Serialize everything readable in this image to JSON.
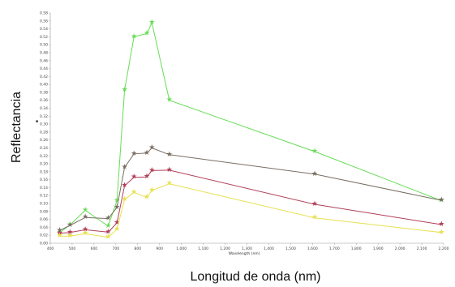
{
  "chart_data": {
    "type": "line",
    "x_title": "Longitud de onda (nm)",
    "y_title": "Reflectancia",
    "inner_x_title": "Wavelength (nm)",
    "xlim": [
      400,
      2200
    ],
    "ylim": [
      0,
      0.58
    ],
    "x_ticks": [
      "400",
      "500",
      "600",
      "700",
      "800",
      "900",
      "1,000",
      "1,100",
      "1,200",
      "1,300",
      "1,400",
      "1,500",
      "1,600",
      "1,700",
      "1,800",
      "1,900",
      "2,000",
      "2,100",
      "2,200"
    ],
    "y_ticks": [
      "0.00",
      "0.02",
      "0.04",
      "0.06",
      "0.08",
      "0.10",
      "0.12",
      "0.14",
      "0.16",
      "0.18",
      "0.20",
      "0.22",
      "0.24",
      "0.26",
      "0.28",
      "0.30",
      "0.32",
      "0.34",
      "0.36",
      "0.38",
      "0.40",
      "0.42",
      "0.44",
      "0.46",
      "0.48",
      "0.50",
      "0.52",
      "0.54",
      "0.56",
      "0.58"
    ],
    "x": [
      443,
      490,
      560,
      665,
      705,
      740,
      783,
      842,
      865,
      945,
      1610,
      2190
    ],
    "series": [
      {
        "color": "#66dd55",
        "values": [
          0.027,
          0.046,
          0.083,
          0.043,
          0.107,
          0.386,
          0.52,
          0.528,
          0.555,
          0.36,
          0.231,
          0.107
        ]
      },
      {
        "color": "#7a6e62",
        "values": [
          0.032,
          0.045,
          0.065,
          0.062,
          0.09,
          0.191,
          0.225,
          0.227,
          0.24,
          0.223,
          0.174,
          0.108
        ]
      },
      {
        "color": "#b04058",
        "values": [
          0.025,
          0.027,
          0.034,
          0.028,
          0.051,
          0.145,
          0.166,
          0.167,
          0.183,
          0.184,
          0.098,
          0.047
        ]
      },
      {
        "color": "#e8e050",
        "values": [
          0.018,
          0.018,
          0.024,
          0.015,
          0.035,
          0.11,
          0.128,
          0.115,
          0.133,
          0.15,
          0.064,
          0.027
        ]
      }
    ],
    "marker": "★",
    "legend_marker": "■",
    "grid": false
  }
}
